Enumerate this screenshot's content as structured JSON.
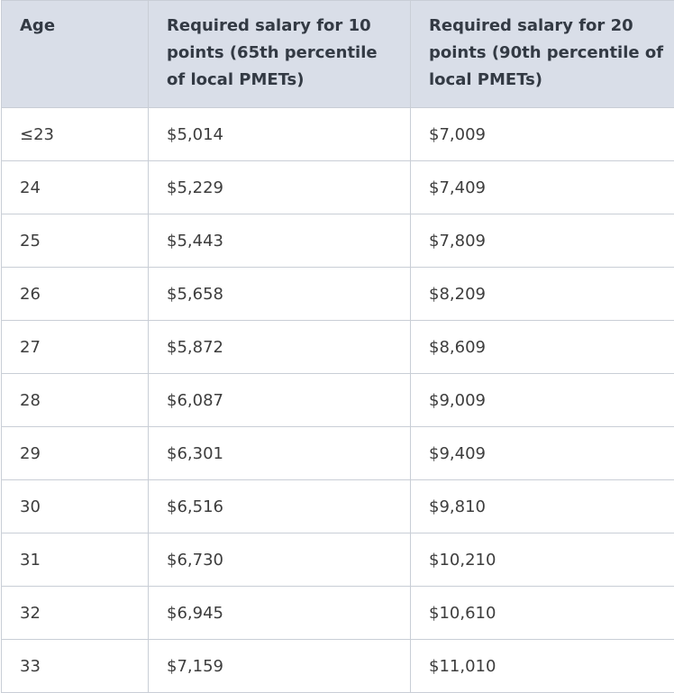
{
  "table": {
    "headers": [
      "Age",
      "Required salary for 10 points (65th percentile of local PMETs)",
      "Required salary for 20 points (90th percentile of local PMETs)"
    ],
    "rows": [
      [
        "≤23",
        "$5,014",
        "$7,009"
      ],
      [
        "24",
        "$5,229",
        "$7,409"
      ],
      [
        "25",
        "$5,443",
        "$7,809"
      ],
      [
        "26",
        "$5,658",
        "$8,209"
      ],
      [
        "27",
        "$5,872",
        "$8,609"
      ],
      [
        "28",
        "$6,087",
        "$9,009"
      ],
      [
        "29",
        "$6,301",
        "$9,409"
      ],
      [
        "30",
        "$6,516",
        "$9,810"
      ],
      [
        "31",
        "$6,730",
        "$10,210"
      ],
      [
        "32",
        "$6,945",
        "$10,610"
      ],
      [
        "33",
        "$7,159",
        "$11,010"
      ]
    ]
  }
}
